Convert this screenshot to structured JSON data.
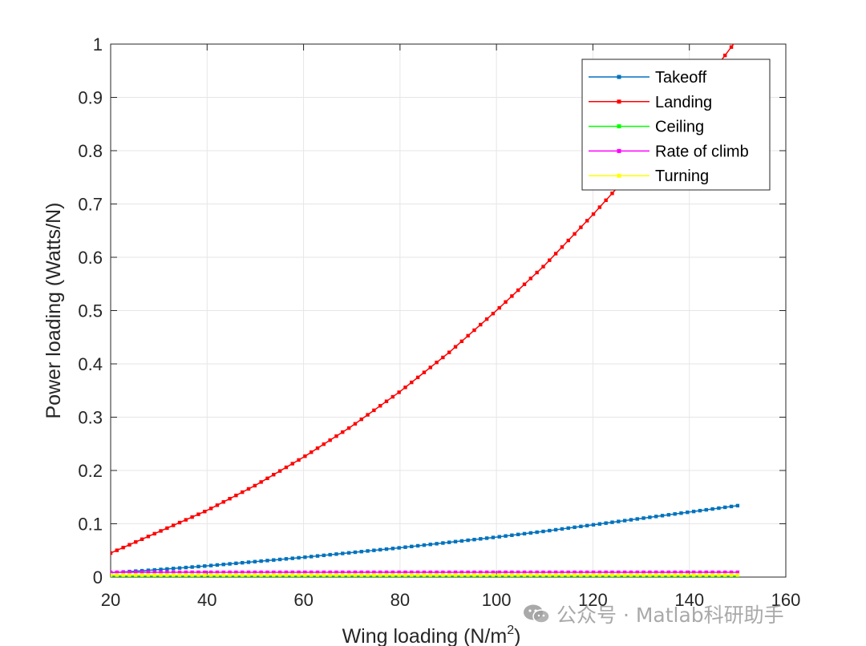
{
  "chart_data": {
    "type": "line",
    "xlabel": "Wing loading (N/m",
    "xlabel_sup": "2",
    "xlabel_end": ")",
    "ylabel": "Power loading (Watts/N)",
    "xlim": [
      20,
      160
    ],
    "ylim": [
      0,
      1
    ],
    "xticks": [
      20,
      40,
      60,
      80,
      100,
      120,
      140,
      160
    ],
    "yticks": [
      0,
      0.1,
      0.2,
      0.3,
      0.4,
      0.5,
      0.6,
      0.7,
      0.8,
      0.9,
      1
    ],
    "ytick_labels": [
      "0",
      "0.1",
      "0.2",
      "0.3",
      "0.4",
      "0.5",
      "0.6",
      "0.7",
      "0.8",
      "0.9",
      "1"
    ],
    "grid": true,
    "legend_position": "top-right",
    "x_range": [
      20,
      150
    ],
    "series": [
      {
        "name": "Takeoff",
        "color": "#0072BD",
        "x": [
          20,
          30,
          40,
          50,
          60,
          70,
          80,
          90,
          100,
          110,
          120,
          130,
          140,
          150
        ],
        "values": [
          0.008,
          0.014,
          0.021,
          0.029,
          0.037,
          0.046,
          0.055,
          0.065,
          0.075,
          0.086,
          0.098,
          0.11,
          0.122,
          0.134
        ]
      },
      {
        "name": "Landing",
        "color": "#FF0000",
        "x": [
          20,
          30,
          40,
          50,
          60,
          70,
          80,
          90,
          100,
          110,
          120,
          130,
          140,
          150
        ],
        "values": [
          0.045,
          0.085,
          0.125,
          0.172,
          0.225,
          0.283,
          0.348,
          0.42,
          0.5,
          0.585,
          0.68,
          0.78,
          0.89,
          1.01
        ]
      },
      {
        "name": "Ceiling",
        "color": "#00FF00",
        "x": [
          20,
          150
        ],
        "values": [
          0.002,
          0.002
        ]
      },
      {
        "name": "Rate of climb",
        "color": "#FF00FF",
        "x": [
          20,
          150
        ],
        "values": [
          0.009,
          0.009
        ]
      },
      {
        "name": "Turning",
        "color": "#FFFF00",
        "x": [
          20,
          150
        ],
        "values": [
          0.004,
          0.004
        ]
      }
    ]
  },
  "watermark": {
    "text": "公众号 · Matlab科研助手",
    "icon": "wechat-icon"
  }
}
